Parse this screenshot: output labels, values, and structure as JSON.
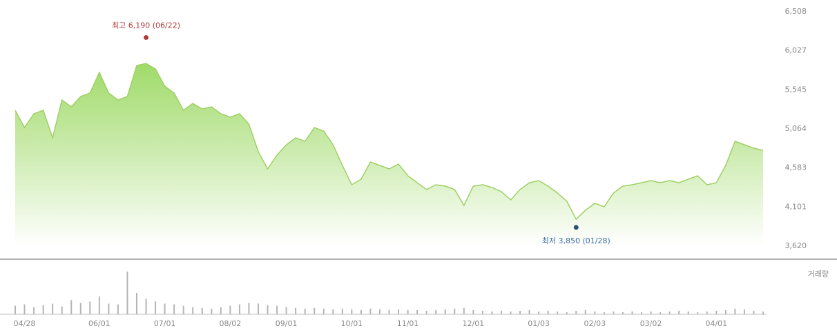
{
  "chart_data": {
    "type": "line",
    "categories": [
      null,
      "04/28",
      null,
      null,
      null,
      null,
      null,
      null,
      null,
      "06/01",
      null,
      null,
      null,
      null,
      null,
      null,
      "07/01",
      null,
      null,
      null,
      null,
      null,
      null,
      "08/02",
      null,
      null,
      null,
      null,
      null,
      "09/01",
      null,
      null,
      null,
      null,
      null,
      null,
      "10/01",
      null,
      null,
      null,
      null,
      null,
      "11/01",
      null,
      null,
      null,
      null,
      null,
      null,
      "12/01",
      null,
      null,
      null,
      null,
      null,
      null,
      "01/03",
      null,
      null,
      null,
      null,
      null,
      "02/03",
      null,
      null,
      null,
      null,
      null,
      "03/02",
      null,
      null,
      null,
      null,
      null,
      null,
      "04/01",
      null,
      null,
      null,
      null,
      null
    ],
    "values": [
      5293,
      5081,
      5251,
      5293,
      4954,
      5421,
      5336,
      5463,
      5506,
      5760,
      5506,
      5421,
      5463,
      5845,
      5871,
      5803,
      5591,
      5506,
      5293,
      5378,
      5310,
      5336,
      5251,
      5208,
      5251,
      5123,
      4784,
      4571,
      4741,
      4869,
      4954,
      4911,
      5081,
      5038,
      4869,
      4614,
      4376,
      4444,
      4656,
      4614,
      4571,
      4631,
      4486,
      4401,
      4317,
      4376,
      4359,
      4317,
      4121,
      4359,
      4376,
      4342,
      4291,
      4189,
      4317,
      4401,
      4427,
      4359,
      4274,
      4172,
      3951,
      4062,
      4147,
      4104,
      4274,
      4359,
      4376,
      4401,
      4427,
      4401,
      4427,
      4401,
      4444,
      4486,
      4376,
      4401,
      4614,
      4911,
      4869,
      4826,
      4800
    ],
    "color": "#9fd064",
    "ylim": [
      3620,
      6508
    ],
    "yticks": [
      {
        "value": 3620,
        "label": "3,620"
      },
      {
        "value": 4101,
        "label": "4,101"
      },
      {
        "value": 4583,
        "label": "4,583"
      },
      {
        "value": 5064,
        "label": "5,064"
      },
      {
        "value": 5545,
        "label": "5,545"
      },
      {
        "value": 6027,
        "label": "6,027"
      },
      {
        "value": 6508,
        "label": "6,508"
      }
    ],
    "high": {
      "label": "최고 6,190 (06/22)",
      "value": 6190
    },
    "low": {
      "label": "최저 3,850 (01/28)",
      "value": 3850
    },
    "volume_label": "거래량",
    "volume": [
      12,
      14,
      10,
      13,
      15,
      11,
      20,
      16,
      18,
      25,
      15,
      14,
      60,
      30,
      22,
      18,
      15,
      14,
      12,
      10,
      9,
      8,
      10,
      12,
      14,
      16,
      15,
      13,
      12,
      10,
      9,
      8,
      9,
      8,
      7,
      8,
      7,
      6,
      8,
      7,
      6,
      7,
      6,
      6,
      5,
      6,
      7,
      8,
      9,
      6,
      5,
      4,
      5,
      4,
      5,
      6,
      4,
      5,
      4,
      3,
      5,
      6,
      4,
      3,
      4,
      3,
      4,
      3,
      4,
      3,
      4,
      5,
      4,
      3,
      4,
      5,
      6,
      8,
      7,
      5,
      4
    ]
  }
}
